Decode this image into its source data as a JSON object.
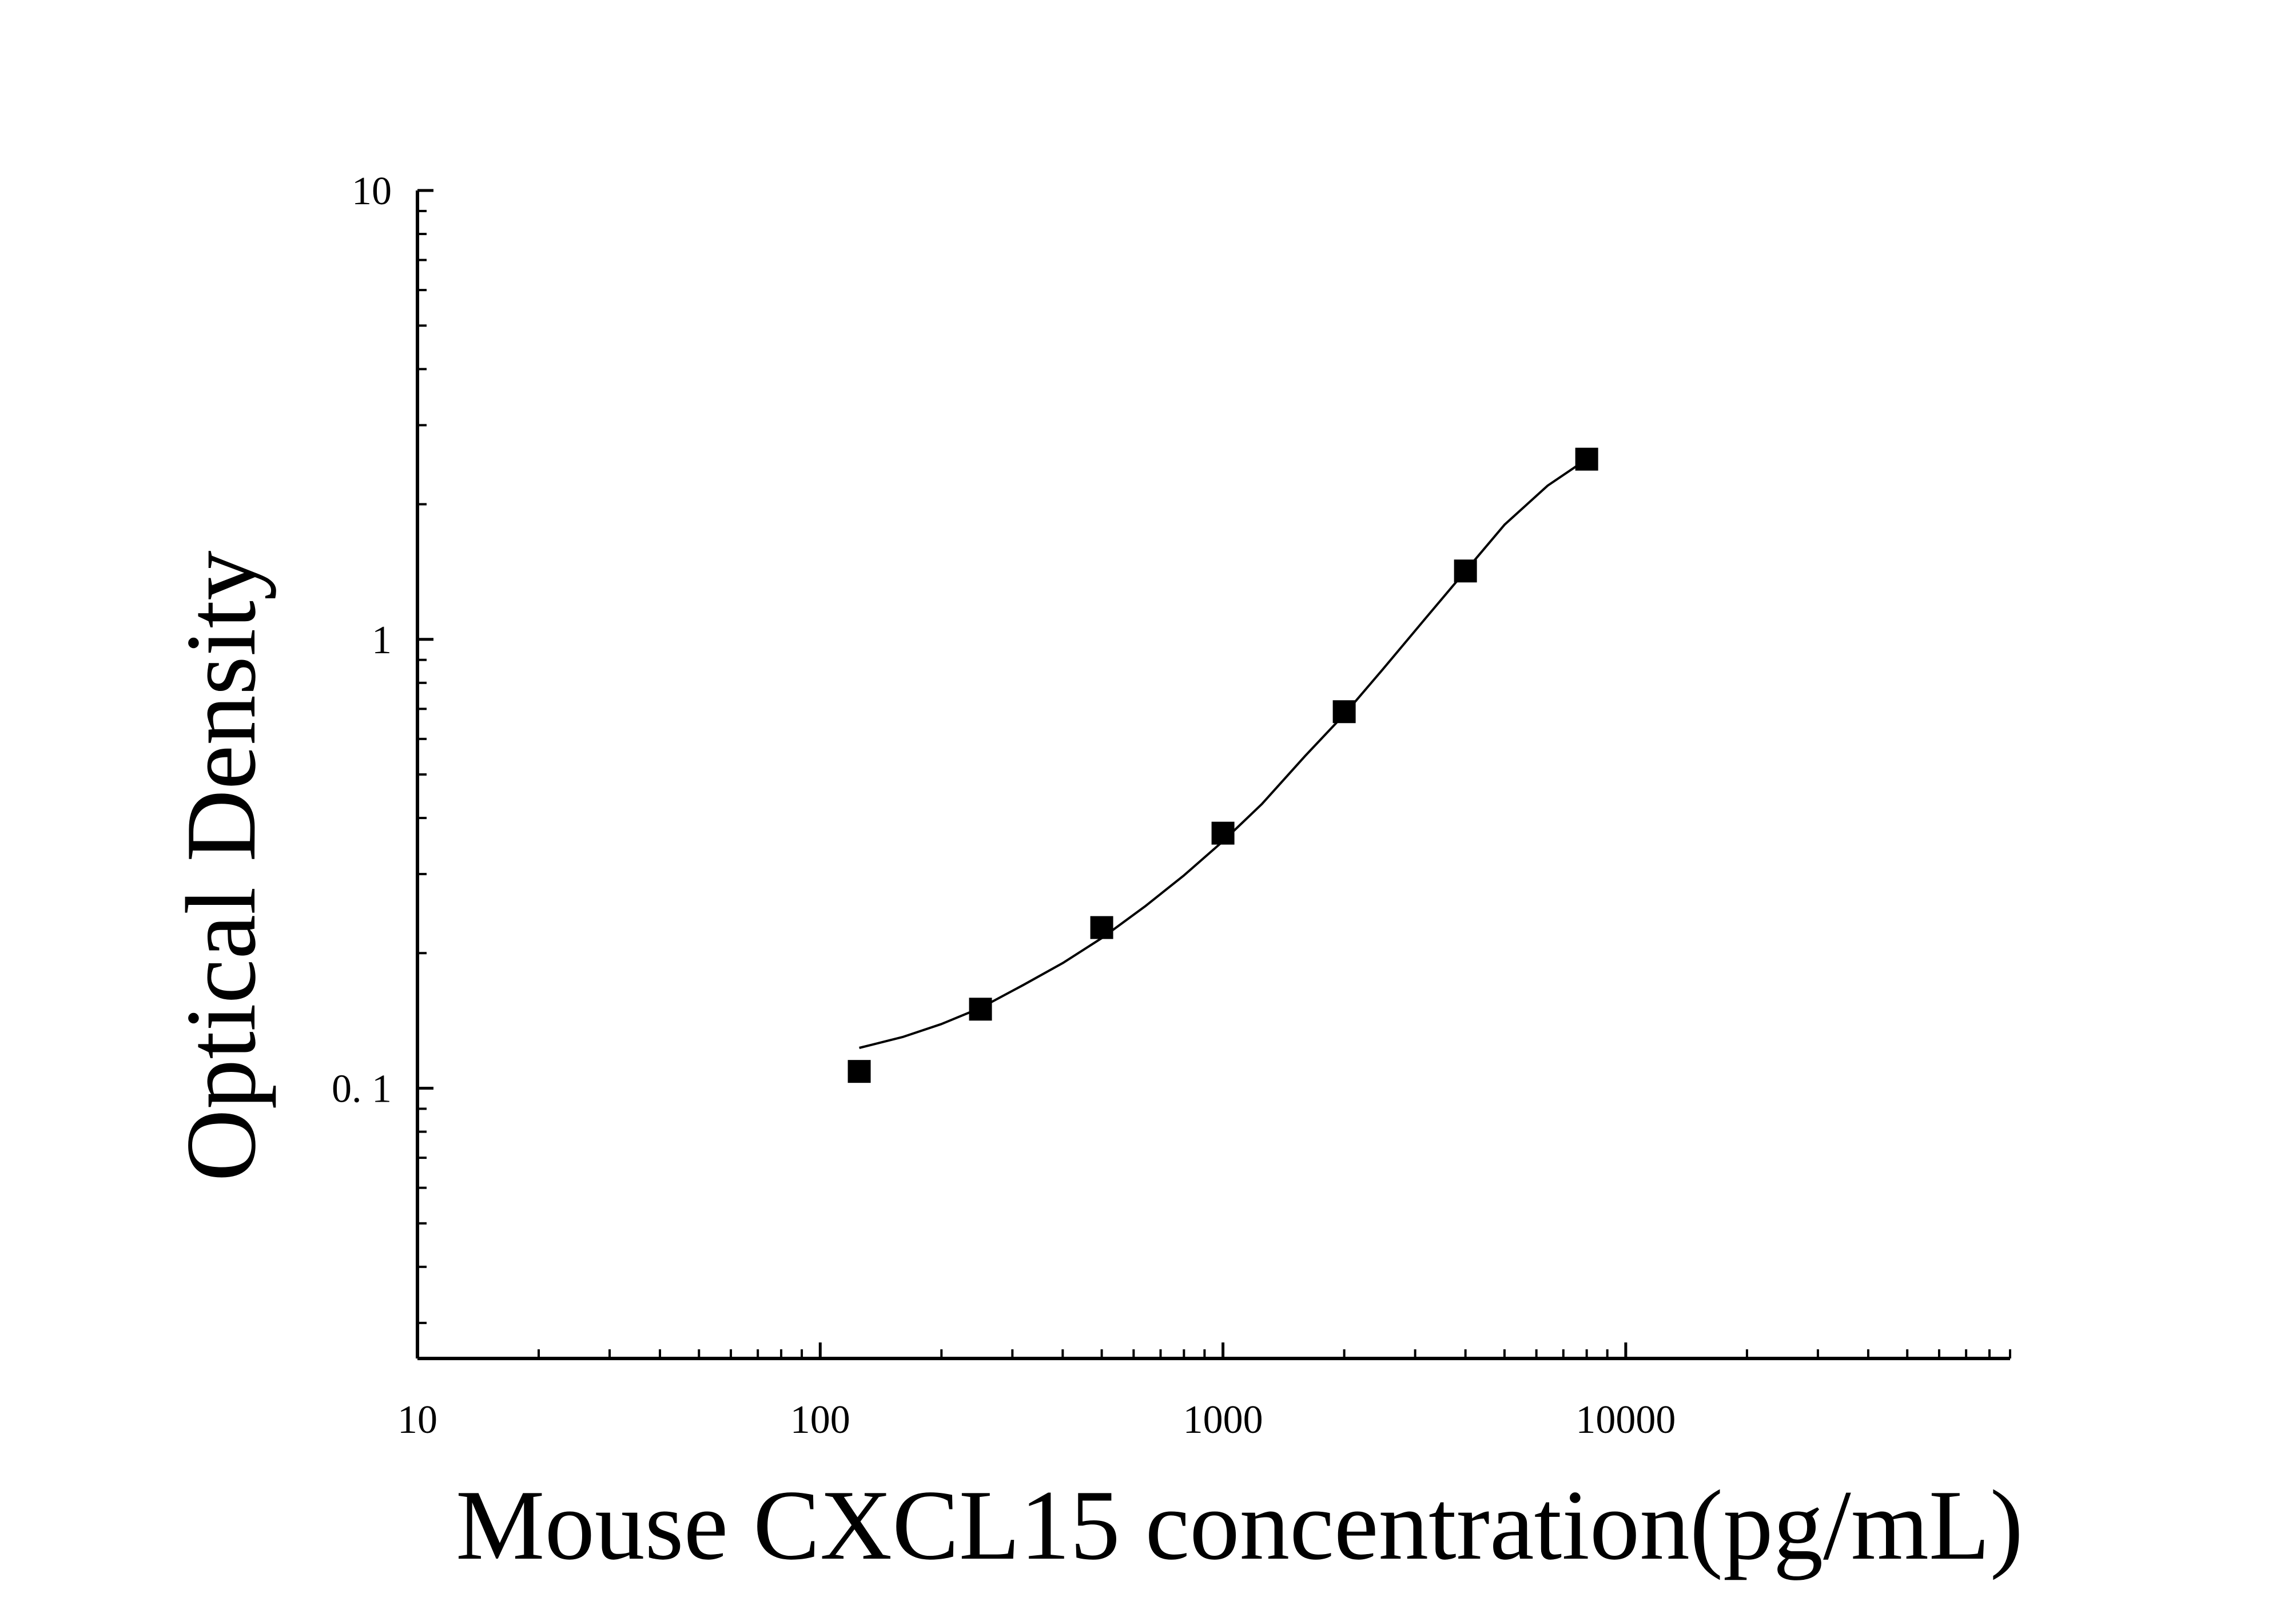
{
  "chart_data": {
    "type": "scatter",
    "title": "",
    "xlabel": "Mouse CXCL15 concentration(pg/mL)",
    "ylabel": "Optical Density",
    "xscale": "log",
    "yscale": "log",
    "xlim": [
      10,
      90000
    ],
    "ylim": [
      0.025,
      10
    ],
    "grid": false,
    "legend": "none",
    "x_ticks": [
      {
        "value": 10,
        "label": "10"
      },
      {
        "value": 100,
        "label": "100"
      },
      {
        "value": 1000,
        "label": "1000"
      },
      {
        "value": 10000,
        "label": "10000"
      }
    ],
    "y_ticks": [
      {
        "value": 0.1,
        "label": "0. 1"
      },
      {
        "value": 1,
        "label": "1"
      },
      {
        "value": 10,
        "label": "10"
      }
    ],
    "series": [
      {
        "kind": "points",
        "marker": "square",
        "color": "#000000",
        "x": [
          125,
          250,
          500,
          1000,
          2000,
          4000,
          8000
        ],
        "y": [
          0.109,
          0.15,
          0.228,
          0.37,
          0.69,
          1.42,
          2.52
        ]
      },
      {
        "kind": "fit-line",
        "color": "#000000",
        "x": [
          125,
          160,
          200,
          250,
          320,
          400,
          500,
          640,
          800,
          1000,
          1250,
          1600,
          2000,
          2500,
          3200,
          4000,
          5000,
          6400,
          8000
        ],
        "y": [
          0.123,
          0.13,
          0.139,
          0.151,
          0.17,
          0.19,
          0.216,
          0.254,
          0.298,
          0.355,
          0.43,
          0.55,
          0.68,
          0.86,
          1.12,
          1.42,
          1.8,
          2.2,
          2.52
        ]
      }
    ]
  }
}
